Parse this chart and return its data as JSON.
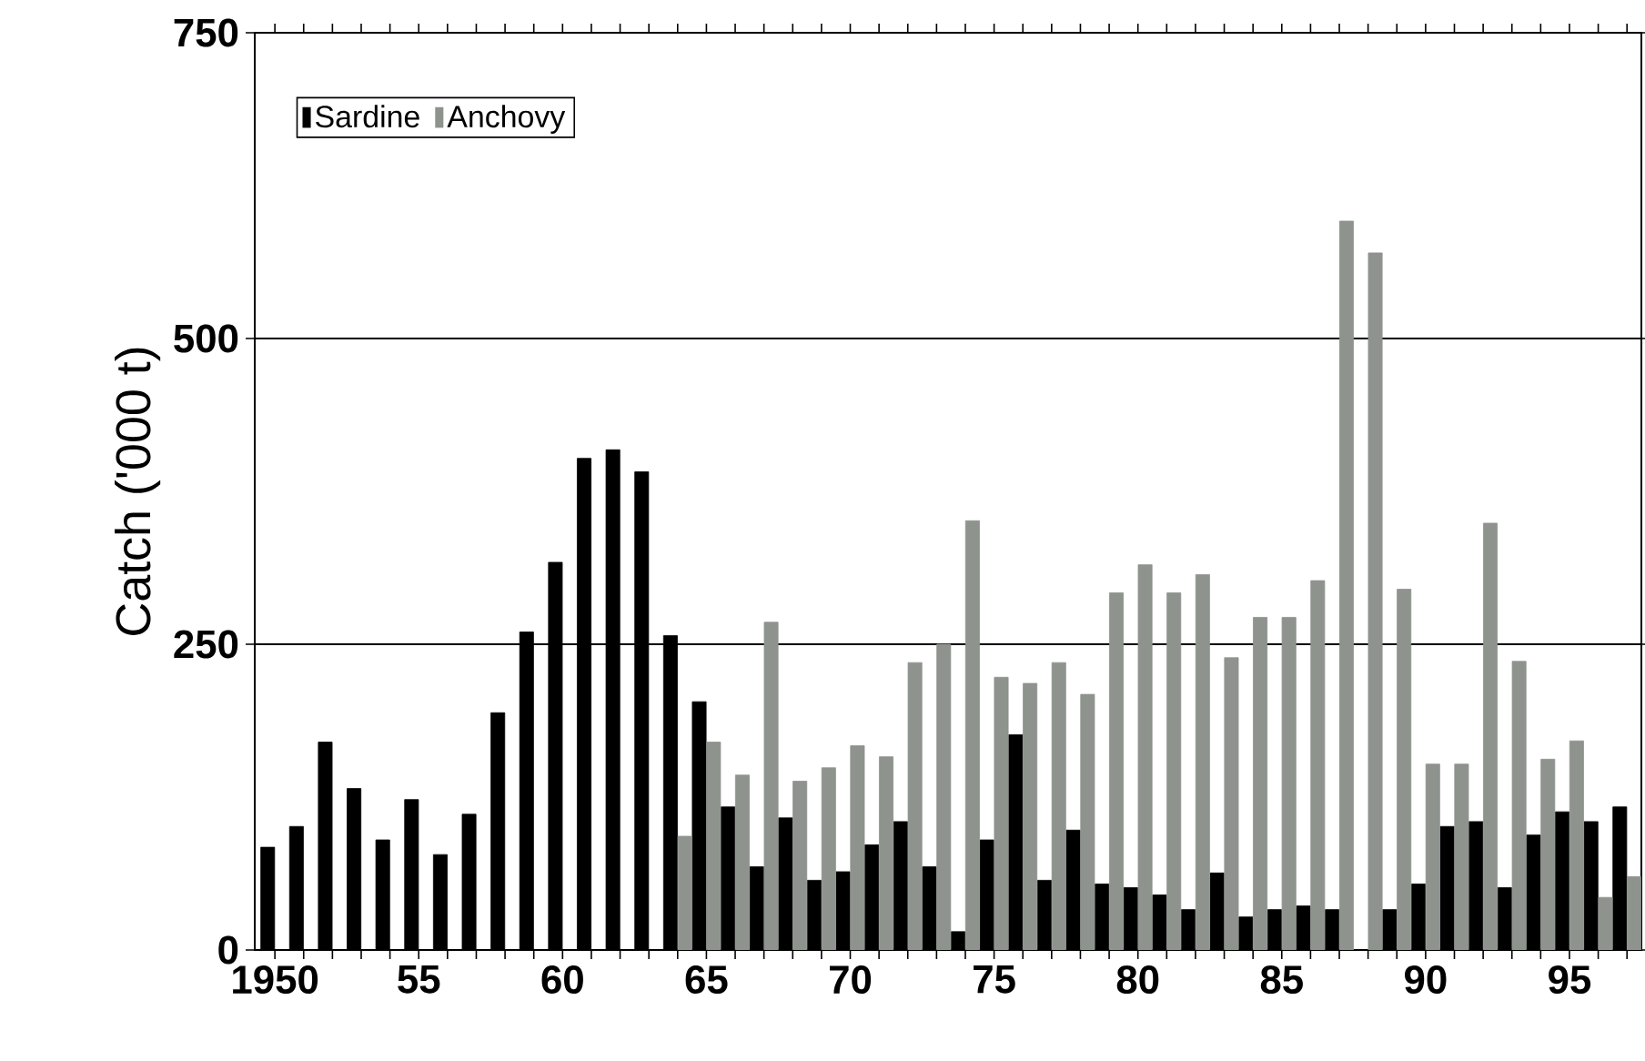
{
  "chart_data": {
    "type": "bar",
    "ylabel": "Catch ('000 t)",
    "x": [
      1950,
      1951,
      1952,
      1953,
      1954,
      1955,
      1956,
      1957,
      1958,
      1959,
      1960,
      1961,
      1962,
      1963,
      1964,
      1965,
      1966,
      1967,
      1968,
      1969,
      1970,
      1971,
      1972,
      1973,
      1974,
      1975,
      1976,
      1977,
      1978,
      1979,
      1980,
      1981,
      1982,
      1983,
      1984,
      1985,
      1986,
      1987,
      1988,
      1989,
      1990,
      1991,
      1992,
      1993,
      1994,
      1995,
      1996,
      1997
    ],
    "series": [
      {
        "name": "Sardine",
        "color": "#000000",
        "values": [
          84,
          101,
          170,
          132,
          90,
          123,
          78,
          111,
          194,
          260,
          317,
          402,
          409,
          391,
          257,
          203,
          117,
          68,
          108,
          57,
          64,
          86,
          105,
          68,
          15,
          90,
          176,
          57,
          98,
          54,
          51,
          45,
          33,
          63,
          27,
          33,
          36,
          33,
          null,
          33,
          54,
          101,
          105,
          51,
          94,
          113,
          105,
          117
        ]
      },
      {
        "name": "Anchovy",
        "color": "#8e938e",
        "values": [
          null,
          null,
          null,
          null,
          null,
          null,
          null,
          null,
          null,
          null,
          null,
          null,
          null,
          null,
          93,
          170,
          143,
          268,
          138,
          149,
          167,
          158,
          235,
          250,
          351,
          223,
          218,
          235,
          209,
          292,
          315,
          292,
          307,
          239,
          272,
          272,
          302,
          596,
          570,
          295,
          152,
          152,
          349,
          236,
          156,
          171,
          43,
          60
        ]
      }
    ],
    "xlim": [
      1949.3,
      1997.5
    ],
    "xticks": [
      1950,
      {
        "value": 1951,
        "label": null
      },
      {
        "value": 1952,
        "label": null
      },
      {
        "value": 1953,
        "label": null
      },
      {
        "value": 1954,
        "label": null
      },
      {
        "value": 1955,
        "label": "55"
      },
      {
        "value": 1956,
        "label": null
      },
      {
        "value": 1957,
        "label": null
      },
      {
        "value": 1958,
        "label": null
      },
      {
        "value": 1959,
        "label": null
      },
      {
        "value": 1960,
        "label": "60"
      },
      {
        "value": 1961,
        "label": null
      },
      {
        "value": 1962,
        "label": null
      },
      {
        "value": 1963,
        "label": null
      },
      {
        "value": 1964,
        "label": null
      },
      {
        "value": 1965,
        "label": "65"
      },
      {
        "value": 1966,
        "label": null
      },
      {
        "value": 1967,
        "label": null
      },
      {
        "value": 1968,
        "label": null
      },
      {
        "value": 1969,
        "label": null
      },
      {
        "value": 1970,
        "label": "70"
      },
      {
        "value": 1971,
        "label": null
      },
      {
        "value": 1972,
        "label": null
      },
      {
        "value": 1973,
        "label": null
      },
      {
        "value": 1974,
        "label": null
      },
      {
        "value": 1975,
        "label": "75"
      },
      {
        "value": 1976,
        "label": null
      },
      {
        "value": 1977,
        "label": null
      },
      {
        "value": 1978,
        "label": null
      },
      {
        "value": 1979,
        "label": null
      },
      {
        "value": 1980,
        "label": "80"
      },
      {
        "value": 1981,
        "label": null
      },
      {
        "value": 1982,
        "label": null
      },
      {
        "value": 1983,
        "label": null
      },
      {
        "value": 1984,
        "label": null
      },
      {
        "value": 1985,
        "label": "85"
      },
      {
        "value": 1986,
        "label": null
      },
      {
        "value": 1987,
        "label": null
      },
      {
        "value": 1988,
        "label": null
      },
      {
        "value": 1989,
        "label": null
      },
      {
        "value": 1990,
        "label": "90"
      },
      {
        "value": 1991,
        "label": null
      },
      {
        "value": 1992,
        "label": null
      },
      {
        "value": 1993,
        "label": null
      },
      {
        "value": 1994,
        "label": null
      },
      {
        "value": 1995,
        "label": "95"
      },
      {
        "value": 1996,
        "label": null
      },
      {
        "value": 1997,
        "label": null
      }
    ],
    "ylim": [
      0,
      750
    ],
    "yticks": [
      0,
      250,
      500,
      750
    ],
    "grid": "y",
    "legend": "top left"
  }
}
